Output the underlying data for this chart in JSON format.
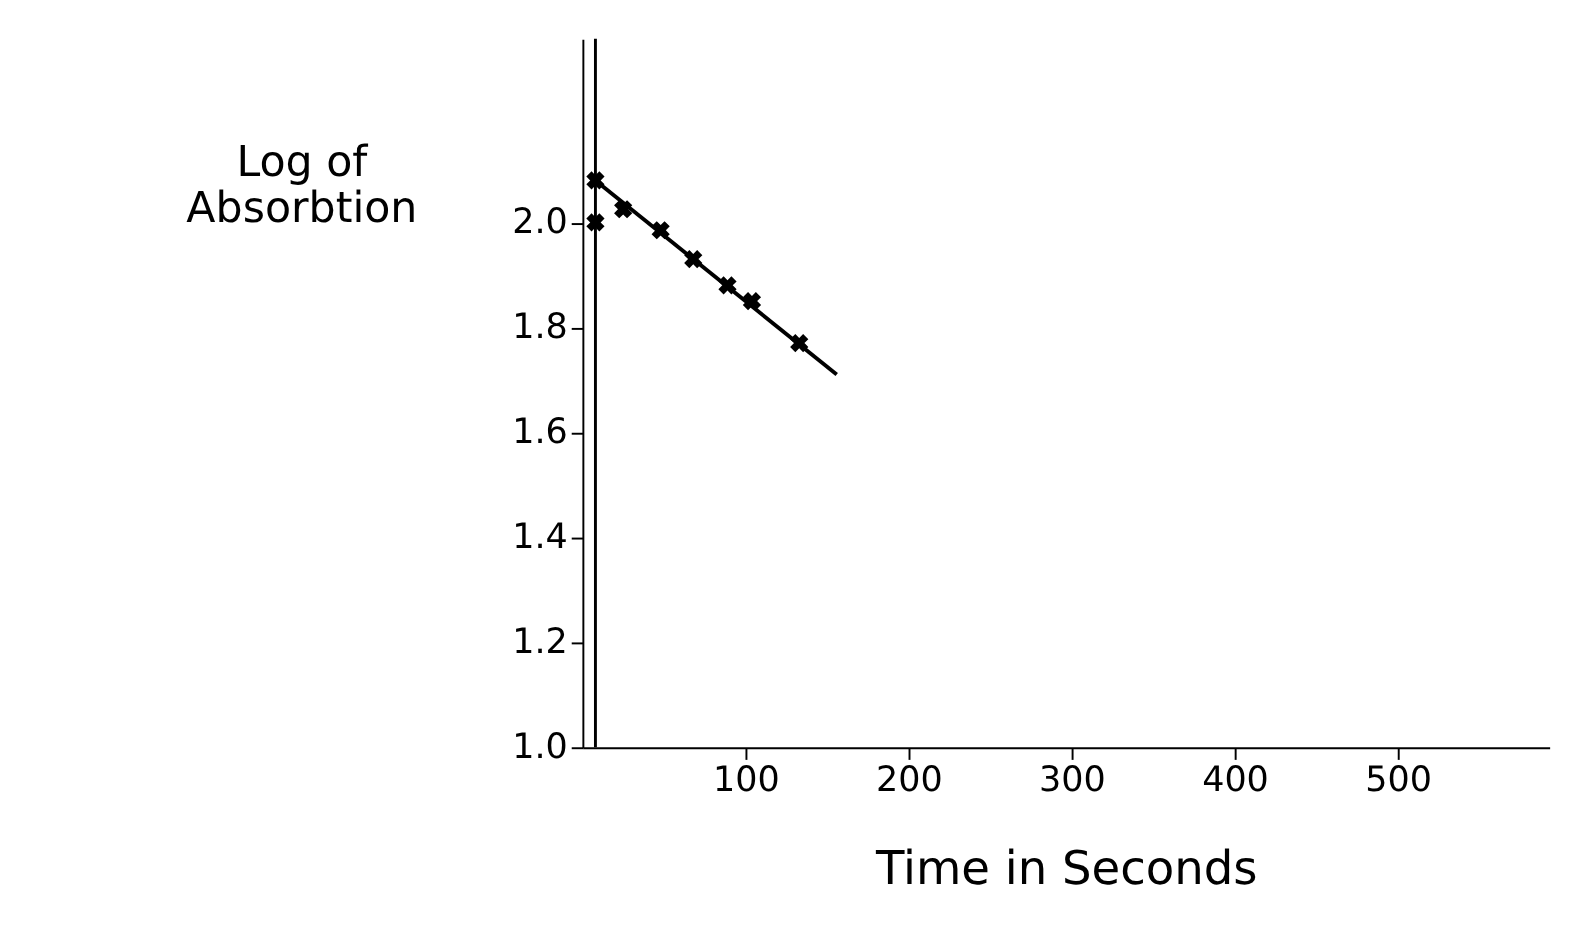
{
  "chart_data": {
    "type": "scatter",
    "xlabel": "Time in Seconds",
    "ylabel": "Log of\nAbsorbtion",
    "x": [
      8,
      8,
      25,
      48,
      68,
      89,
      104,
      133
    ],
    "series": [
      {
        "color": "#000000",
        "values": [
          2.08,
          2.0,
          2.025,
          1.985,
          1.93,
          1.88,
          1.85,
          1.77
        ],
        "marker": "cross"
      },
      {
        "type": "line",
        "color": "#000000",
        "x": [
          4,
          156
        ],
        "values": [
          2.09,
          1.71
        ],
        "marker": "none"
      }
    ],
    "ref_lines": [
      {
        "axis": "x",
        "value": 8,
        "color": "#000000"
      }
    ],
    "xlim": [
      0,
      593
    ],
    "ylim": [
      1.0,
      2.35
    ],
    "xticks": [
      100,
      200,
      300,
      400,
      500
    ],
    "yticks": [
      {
        "value": 1.0,
        "label": "1.0"
      },
      1.2,
      1.4,
      1.6,
      1.8,
      {
        "value": 2.0,
        "label": "2.0"
      }
    ]
  }
}
